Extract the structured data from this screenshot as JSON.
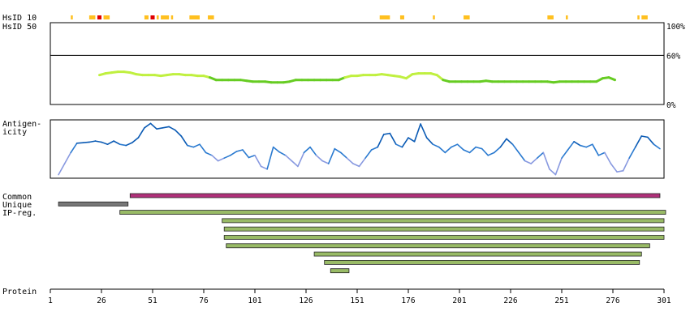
{
  "labels": {
    "hsid10": "HsID 10",
    "hsid50": "HsID 50",
    "antigenicity_1": "Antigen-",
    "antigenicity_2": "icity",
    "common": "Common",
    "unique": "Unique",
    "ipreg": "IP-reg.",
    "protein": "Protein"
  },
  "chart_data": [
    {
      "type": "heatmap",
      "name_ref": "hsid10",
      "x_range": [
        1,
        301
      ],
      "segments": [
        {
          "start": 11,
          "end": 12,
          "color": "#ffc020"
        },
        {
          "start": 20,
          "end": 23,
          "color": "#ffc020"
        },
        {
          "start": 24,
          "end": 26,
          "color": "#e00000"
        },
        {
          "start": 27,
          "end": 30,
          "color": "#ffc020"
        },
        {
          "start": 47,
          "end": 49,
          "color": "#ffc020"
        },
        {
          "start": 50,
          "end": 52,
          "color": "#e00000"
        },
        {
          "start": 53,
          "end": 54,
          "color": "#ffc020"
        },
        {
          "start": 55,
          "end": 59,
          "color": "#ffc020"
        },
        {
          "start": 60,
          "end": 61,
          "color": "#ffc020"
        },
        {
          "start": 69,
          "end": 74,
          "color": "#ffc020"
        },
        {
          "start": 78,
          "end": 81,
          "color": "#ffc020"
        },
        {
          "start": 162,
          "end": 167,
          "color": "#ffc020"
        },
        {
          "start": 172,
          "end": 174,
          "color": "#ffc020"
        },
        {
          "start": 188,
          "end": 189,
          "color": "#ffc020"
        },
        {
          "start": 203,
          "end": 206,
          "color": "#ffc020"
        },
        {
          "start": 244,
          "end": 247,
          "color": "#ffc020"
        },
        {
          "start": 253,
          "end": 254,
          "color": "#ffc020"
        },
        {
          "start": 288,
          "end": 289,
          "color": "#ffc020"
        },
        {
          "start": 290,
          "end": 293,
          "color": "#ffc020"
        }
      ]
    },
    {
      "type": "line",
      "name_ref": "hsid50",
      "y_ticks": [
        "100%",
        "60%",
        "0%"
      ],
      "ylim": [
        0,
        100
      ],
      "reference_line": 60,
      "x": [
        25,
        28,
        31,
        34,
        37,
        40,
        43,
        46,
        49,
        52,
        55,
        58,
        61,
        64,
        67,
        70,
        73,
        76,
        79,
        82,
        85,
        88,
        91,
        94,
        97,
        100,
        103,
        106,
        109,
        112,
        115,
        118,
        121,
        124,
        127,
        130,
        133,
        136,
        139,
        142,
        145,
        148,
        151,
        154,
        157,
        160,
        163,
        166,
        169,
        172,
        175,
        178,
        181,
        184,
        187,
        190,
        193,
        196,
        199,
        202,
        205,
        208,
        211,
        214,
        217,
        220,
        223,
        226,
        229,
        232,
        235,
        238,
        241,
        244,
        247,
        250,
        253,
        256,
        259,
        262,
        265,
        268,
        271,
        274,
        277
      ],
      "values": [
        36,
        38,
        39,
        40,
        40,
        39,
        37,
        36,
        36,
        36,
        35,
        36,
        37,
        37,
        36,
        36,
        35,
        35,
        33,
        30,
        30,
        30,
        30,
        30,
        29,
        28,
        28,
        28,
        27,
        27,
        27,
        28,
        30,
        30,
        30,
        30,
        30,
        30,
        30,
        30,
        33,
        35,
        35,
        36,
        36,
        36,
        37,
        36,
        35,
        34,
        32,
        37,
        38,
        38,
        38,
        36,
        30,
        28,
        28,
        28,
        28,
        28,
        28,
        29,
        28,
        28,
        28,
        28,
        28,
        28,
        28,
        28,
        28,
        28,
        27,
        28,
        28,
        28,
        28,
        28,
        28,
        28,
        32,
        33,
        30
      ],
      "colors": {
        "high": "#c0f040",
        "low": "#66cc22",
        "threshold": 33
      }
    },
    {
      "type": "line",
      "name_ref": "antigenicity",
      "x": [
        5,
        8,
        11,
        14,
        17,
        20,
        23,
        26,
        29,
        32,
        35,
        38,
        41,
        44,
        47,
        50,
        53,
        56,
        59,
        62,
        65,
        68,
        71,
        74,
        77,
        80,
        83,
        86,
        89,
        92,
        95,
        98,
        101,
        104,
        107,
        110,
        113,
        116,
        119,
        122,
        125,
        128,
        131,
        134,
        137,
        140,
        143,
        146,
        149,
        152,
        155,
        158,
        161,
        164,
        167,
        170,
        173,
        176,
        179,
        182,
        185,
        188,
        191,
        194,
        197,
        200,
        203,
        206,
        209,
        212,
        215,
        218,
        221,
        224,
        227,
        230,
        233,
        236,
        239,
        242,
        245,
        248,
        251,
        254,
        257,
        260,
        263,
        266,
        269,
        272,
        275,
        278,
        281,
        284,
        287,
        290,
        293,
        296,
        299
      ],
      "values": [
        0.05,
        0.25,
        0.45,
        0.62,
        0.63,
        0.64,
        0.66,
        0.64,
        0.6,
        0.66,
        0.6,
        0.58,
        0.63,
        0.72,
        0.9,
        0.98,
        0.88,
        0.9,
        0.92,
        0.86,
        0.75,
        0.58,
        0.55,
        0.6,
        0.45,
        0.4,
        0.3,
        0.35,
        0.4,
        0.47,
        0.5,
        0.36,
        0.4,
        0.2,
        0.15,
        0.55,
        0.46,
        0.4,
        0.3,
        0.2,
        0.45,
        0.55,
        0.4,
        0.3,
        0.25,
        0.52,
        0.45,
        0.35,
        0.25,
        0.2,
        0.35,
        0.5,
        0.55,
        0.78,
        0.8,
        0.6,
        0.55,
        0.72,
        0.65,
        0.97,
        0.72,
        0.6,
        0.55,
        0.45,
        0.55,
        0.6,
        0.5,
        0.45,
        0.55,
        0.52,
        0.4,
        0.45,
        0.55,
        0.7,
        0.6,
        0.45,
        0.3,
        0.25,
        0.35,
        0.45,
        0.15,
        0.05,
        0.35,
        0.5,
        0.65,
        0.58,
        0.55,
        0.6,
        0.4,
        0.45,
        0.25,
        0.1,
        0.12,
        0.35,
        0.55,
        0.75,
        0.73,
        0.6,
        0.52
      ],
      "colors": {
        "high": "#0a5ab4",
        "mid": "#2a7ad0",
        "low": "#8899e0"
      }
    },
    {
      "type": "bar",
      "name_ref": "regions",
      "x_range": [
        1,
        301
      ],
      "bars": [
        {
          "start": 40,
          "end": 299,
          "color": "#b0307a",
          "row": "common"
        },
        {
          "start": 5,
          "end": 39,
          "color": "#777777",
          "row": "unique"
        },
        {
          "start": 35,
          "end": 303,
          "color": "#99bb66",
          "row": "ipreg"
        },
        {
          "start": 85,
          "end": 301,
          "color": "#99bb66",
          "row": "ipreg"
        },
        {
          "start": 86,
          "end": 301,
          "color": "#99bb66",
          "row": "ipreg"
        },
        {
          "start": 86,
          "end": 301,
          "color": "#99bb66",
          "row": "ipreg"
        },
        {
          "start": 87,
          "end": 294,
          "color": "#99bb66",
          "row": "ipreg"
        },
        {
          "start": 130,
          "end": 290,
          "color": "#99bb66",
          "row": "ipreg"
        },
        {
          "start": 135,
          "end": 289,
          "color": "#99bb66",
          "row": "ipreg"
        },
        {
          "start": 138,
          "end": 147,
          "color": "#99bb66",
          "row": "ipreg"
        }
      ]
    },
    {
      "type": "table",
      "name_ref": "protein_axis",
      "x_ticks": [
        1,
        26,
        51,
        76,
        101,
        126,
        151,
        176,
        201,
        226,
        251,
        276,
        301
      ]
    }
  ]
}
